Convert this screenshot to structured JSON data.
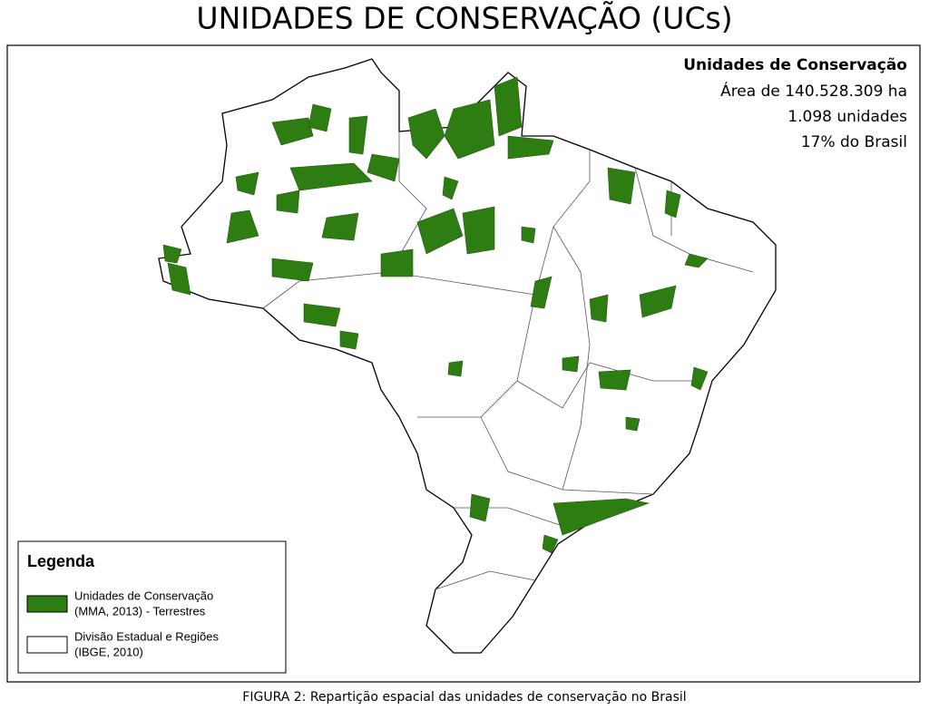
{
  "title": "UNIDADES DE CONSERVAÇÃO (UCs)",
  "info": {
    "heading": "Unidades de Conservação",
    "lines": [
      "Área de 140.528.309 ha",
      "1.098 unidades",
      "17% do Brasil"
    ]
  },
  "legend": {
    "title": "Legenda",
    "items": [
      {
        "lines": [
          "Unidades de Conservação",
          "(MMA, 2013) - Terrestres"
        ]
      },
      {
        "lines": [
          "Divisão Estadual e Regiões",
          "(IBGE, 2010)"
        ]
      }
    ]
  },
  "caption": "FIGURA 2: Repartição espacial das unidades de conservação no Brasil"
}
